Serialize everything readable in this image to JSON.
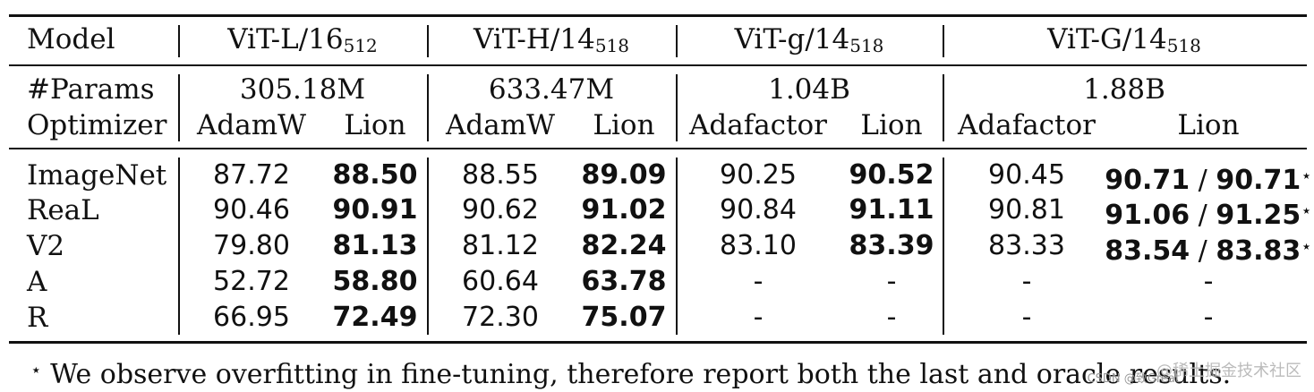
{
  "header": {
    "model_label": "Model",
    "models": [
      {
        "name": "ViT-L/16",
        "sub": "512"
      },
      {
        "name": "ViT-H/14",
        "sub": "518"
      },
      {
        "name": "ViT-g/14",
        "sub": "518"
      },
      {
        "name": "ViT-G/14",
        "sub": "518"
      }
    ],
    "params_label": "#Params",
    "params": [
      "305.18M",
      "633.47M",
      "1.04B",
      "1.88B"
    ],
    "optimizer_label": "Optimizer",
    "optimizers": [
      "AdamW",
      "Lion",
      "AdamW",
      "Lion",
      "Adafactor",
      "Lion",
      "Adafactor",
      "Lion"
    ]
  },
  "rows": [
    {
      "label": "ImageNet",
      "values": [
        "87.72",
        "88.50",
        "88.55",
        "89.09",
        "90.25",
        "90.52",
        "90.45"
      ],
      "last": "90.71",
      "sep": "/",
      "oracle": "90.71",
      "star": "⋆"
    },
    {
      "label": "ReaL",
      "values": [
        "90.46",
        "90.91",
        "90.62",
        "91.02",
        "90.84",
        "91.11",
        "90.81"
      ],
      "last": "91.06",
      "sep": "/",
      "oracle": "91.25",
      "star": "⋆"
    },
    {
      "label": "V2",
      "values": [
        "79.80",
        "81.13",
        "81.12",
        "82.24",
        "83.10",
        "83.39",
        "83.33"
      ],
      "last": "83.54",
      "sep": "/",
      "oracle": "83.83",
      "star": "⋆"
    },
    {
      "label": "A",
      "values": [
        "52.72",
        "58.80",
        "60.64",
        "63.78",
        "-",
        "-",
        "-"
      ],
      "lion_g": "-"
    },
    {
      "label": "R",
      "values": [
        "66.95",
        "72.49",
        "72.30",
        "75.07",
        "-",
        "-",
        "-"
      ],
      "lion_g": "-"
    }
  ],
  "footnote": {
    "star": "⋆",
    "text": "We observe overfitting in fine-tuning, therefore report both the last and oracle results."
  },
  "watermark": {
    "main": "@稀土掘金技术社区",
    "sub": "CSDN @致Great"
  }
}
